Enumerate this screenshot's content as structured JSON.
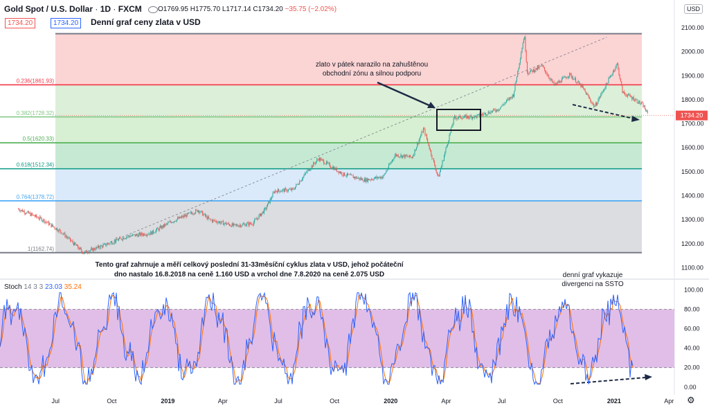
{
  "header": {
    "symbol": "Gold Spot / U.S. Dollar",
    "interval": "1D",
    "exchange": "FXCM",
    "open": "O1769.95",
    "high": "H1775.70",
    "low": "L1717.14",
    "close": "C1734.20",
    "change": "−35.75 (−2.02%)",
    "price_box_left": "1734.20",
    "price_box_right": "1734.20",
    "currency": "USD"
  },
  "chart_title": "Denní graf ceny zlata v USD",
  "annotations": {
    "zone_note_line1": "zlato v pátek narazilo na zahuštěnou",
    "zone_note_line2": "obchodní zónu a silnou podporu",
    "cycle_note_line1": "Tento graf zahrnuje a měří celkový poslední 31-33měsíční cyklus zlata v USD, jehož počáteční",
    "cycle_note_line2": "dno nastalo 16.8.2018 na ceně 1.160 USD a vrchol dne 7.8.2020 na ceně 2.075 USD",
    "stoch_note_line1": "denní graf vykazuje",
    "stoch_note_line2": "divergenci na SSTO"
  },
  "stoch_legend": {
    "name": "Stoch",
    "params": "14 3 3",
    "k": "23.03",
    "d": "35.24"
  },
  "colors": {
    "up": "#26a69a",
    "down": "#ef5350",
    "fib_0236": "#f23645",
    "fib_0382": "#81c784",
    "fib_05": "#4caf50",
    "fib_0618": "#089981",
    "fib_0764": "#42a5f5",
    "fib_1": "#787b86",
    "k_line": "#2962ff",
    "d_line": "#ff6d00",
    "stoch_band": "#e1bee7"
  },
  "chart_data": [
    {
      "type": "candlestick",
      "title": "Denní graf ceny zlata v USD",
      "x_ticks": [
        "Jul",
        "Oct",
        "2019",
        "Apr",
        "Jul",
        "Oct",
        "2020",
        "Apr",
        "Jul",
        "Oct",
        "2021",
        "Apr"
      ],
      "y_ticks": [
        "2100.00",
        "2000.00",
        "1900.00",
        "1800.00",
        "1700.00",
        "1600.00",
        "1500.00",
        "1400.00",
        "1300.00",
        "1200.00",
        "1100.00"
      ],
      "ylim": [
        1090,
        2120
      ],
      "last_price": "1734.20",
      "fib_levels": [
        {
          "ratio": "0",
          "price": 2075,
          "label": ""
        },
        {
          "ratio": "0.236",
          "price": 1861.93,
          "label": "0.236(1861.93)"
        },
        {
          "ratio": "0.382",
          "price": 1728.32,
          "label": "0.382(1728.32)"
        },
        {
          "ratio": "0.5",
          "price": 1620.33,
          "label": "0.5(1620.33)"
        },
        {
          "ratio": "0.618",
          "price": 1512.34,
          "label": "0.618(1512.34)"
        },
        {
          "ratio": "0.764",
          "price": 1378.72,
          "label": "0.764(1378.72)"
        },
        {
          "ratio": "1",
          "price": 1162.74,
          "label": "1(1162.74)"
        }
      ],
      "price_path": [
        {
          "date": "2018-05-01",
          "price": 1345
        },
        {
          "date": "2018-06-10",
          "price": 1300
        },
        {
          "date": "2018-07-10",
          "price": 1250
        },
        {
          "date": "2018-08-16",
          "price": 1162
        },
        {
          "date": "2018-09-20",
          "price": 1195
        },
        {
          "date": "2018-10-25",
          "price": 1230
        },
        {
          "date": "2018-12-05",
          "price": 1245
        },
        {
          "date": "2019-01-05",
          "price": 1290
        },
        {
          "date": "2019-02-20",
          "price": 1340
        },
        {
          "date": "2019-03-10",
          "price": 1300
        },
        {
          "date": "2019-04-20",
          "price": 1275
        },
        {
          "date": "2019-05-20",
          "price": 1285
        },
        {
          "date": "2019-06-10",
          "price": 1345
        },
        {
          "date": "2019-06-25",
          "price": 1420
        },
        {
          "date": "2019-07-25",
          "price": 1425
        },
        {
          "date": "2019-08-20",
          "price": 1510
        },
        {
          "date": "2019-09-05",
          "price": 1555
        },
        {
          "date": "2019-10-15",
          "price": 1490
        },
        {
          "date": "2019-11-20",
          "price": 1465
        },
        {
          "date": "2019-12-20",
          "price": 1480
        },
        {
          "date": "2020-01-08",
          "price": 1570
        },
        {
          "date": "2020-02-05",
          "price": 1560
        },
        {
          "date": "2020-02-24",
          "price": 1680
        },
        {
          "date": "2020-03-19",
          "price": 1475
        },
        {
          "date": "2020-04-14",
          "price": 1725
        },
        {
          "date": "2020-05-20",
          "price": 1730
        },
        {
          "date": "2020-06-25",
          "price": 1760
        },
        {
          "date": "2020-07-20",
          "price": 1820
        },
        {
          "date": "2020-08-07",
          "price": 2070
        },
        {
          "date": "2020-08-12",
          "price": 1910
        },
        {
          "date": "2020-09-05",
          "price": 1940
        },
        {
          "date": "2020-09-25",
          "price": 1860
        },
        {
          "date": "2020-10-20",
          "price": 1905
        },
        {
          "date": "2020-11-09",
          "price": 1855
        },
        {
          "date": "2020-11-30",
          "price": 1770
        },
        {
          "date": "2021-01-06",
          "price": 1950
        },
        {
          "date": "2021-01-15",
          "price": 1830
        },
        {
          "date": "2021-02-05",
          "price": 1800
        },
        {
          "date": "2021-02-18",
          "price": 1775
        },
        {
          "date": "2021-02-26",
          "price": 1734
        }
      ]
    },
    {
      "type": "line",
      "title": "Stoch 14 3 3",
      "y_ticks": [
        "100.00",
        "80.00",
        "60.00",
        "40.00",
        "20.00",
        "0.00"
      ],
      "ylim": [
        -8,
        106
      ],
      "band": [
        20,
        80
      ],
      "series": [
        {
          "name": "23.03",
          "color": "#2962ff"
        },
        {
          "name": "35.24",
          "color": "#ff6d00"
        }
      ]
    }
  ]
}
